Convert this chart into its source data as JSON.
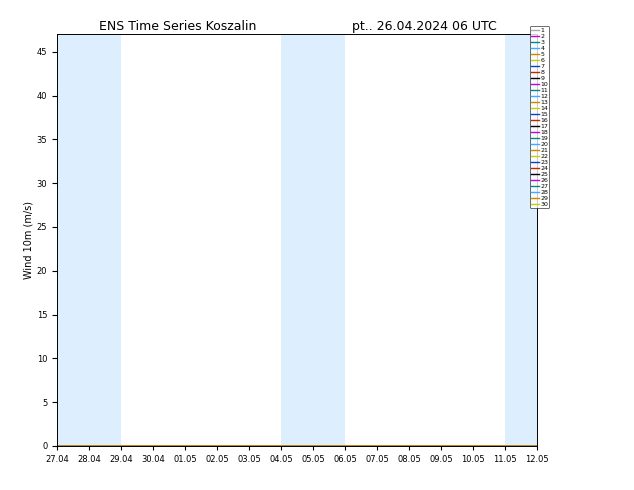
{
  "title": "ENS Time Series Koszalin",
  "title_right": "pt.. 26.04.2024 06 UTC",
  "ylabel": "Wind 10m (m/s)",
  "ylim": [
    0,
    47
  ],
  "yticks": [
    0,
    5,
    10,
    15,
    20,
    25,
    30,
    35,
    40,
    45
  ],
  "x_labels": [
    "27.04",
    "28.04",
    "29.04",
    "30.04",
    "01.05",
    "02.05",
    "03.05",
    "04.05",
    "05.05",
    "06.05",
    "07.05",
    "08.05",
    "09.05",
    "10.05",
    "11.05",
    "12.05"
  ],
  "shaded_ranges_day": [
    [
      0,
      2
    ],
    [
      7,
      9
    ],
    [
      14,
      16
    ]
  ],
  "band_color": "#ddeeff",
  "background_color": "#ffffff",
  "plot_bg_color": "#ffffff",
  "member_colors": [
    "#aaaaaa",
    "#cc00cc",
    "#008888",
    "#44aaff",
    "#cc8800",
    "#cccc00",
    "#0044cc",
    "#cc2200",
    "#000000",
    "#cc00cc",
    "#008888",
    "#44aaff",
    "#cc8800",
    "#cccc00",
    "#0044cc",
    "#cc2200",
    "#000000",
    "#cc00cc",
    "#008888",
    "#44aaff",
    "#cc8800",
    "#cccc00",
    "#0044cc",
    "#cc2200",
    "#000000",
    "#cc00cc",
    "#008888",
    "#44aaff",
    "#cc8800",
    "#cccc00"
  ],
  "n_members": 30,
  "n_steps": 60,
  "figsize": [
    6.34,
    4.9
  ],
  "dpi": 100,
  "title_fontsize": 9,
  "tick_fontsize": 6,
  "ylabel_fontsize": 7,
  "legend_fontsize": 4.5
}
